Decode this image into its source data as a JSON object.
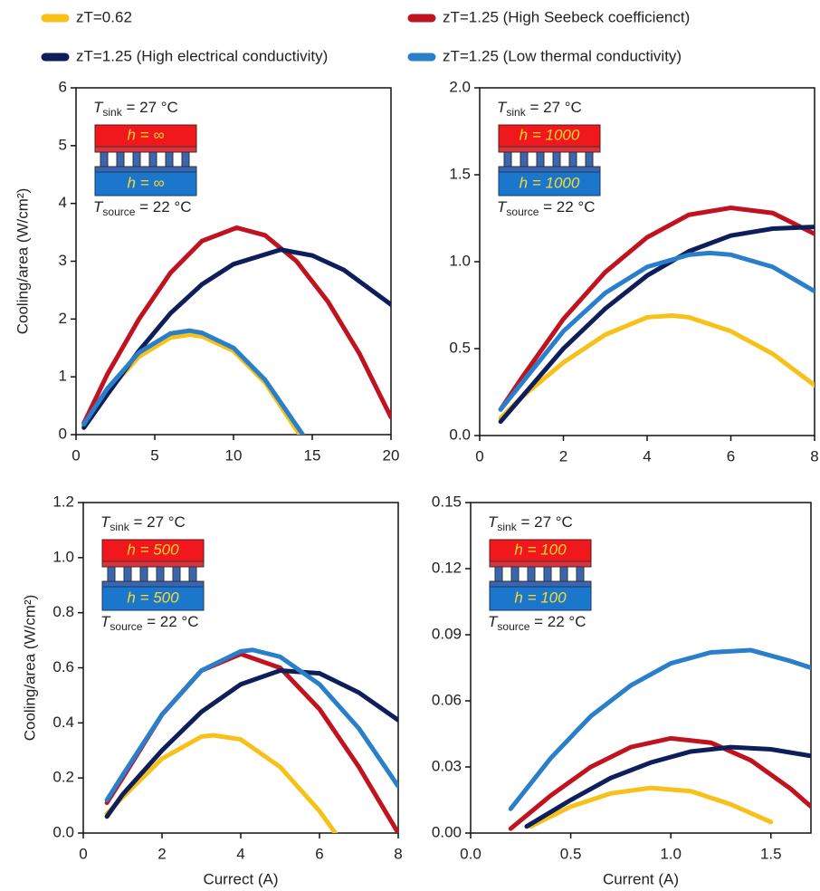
{
  "chart_data": [
    {
      "type": "line",
      "xlim": [
        0,
        20
      ],
      "ylim": [
        0,
        6
      ],
      "xticks": [
        0,
        5,
        10,
        15,
        20
      ],
      "yticks": [
        0,
        1,
        2,
        3,
        4,
        5,
        6
      ],
      "ylabel": "Cooling/area (W/cm²)",
      "inset": {
        "t": "T",
        "sink": "sink",
        "sink_text": " = 27 °C",
        "h": "h = ∞",
        "source": "source",
        "source_text": " = 22 °C"
      },
      "series": [
        {
          "name": "zT=0.62",
          "color": "#f7c11a",
          "x": [
            0.5,
            2,
            4,
            6,
            7.2,
            8,
            10,
            12,
            14.2
          ],
          "values": [
            0.15,
            0.75,
            1.35,
            1.68,
            1.73,
            1.7,
            1.45,
            0.9,
            0
          ]
        },
        {
          "name": "zT=1.25 (High Seebeck coefficienct)",
          "color": "#c1121f",
          "x": [
            0.5,
            2,
            4,
            6,
            8,
            10.2,
            12,
            14,
            16,
            18,
            20
          ],
          "values": [
            0.2,
            1.05,
            2.0,
            2.8,
            3.35,
            3.58,
            3.45,
            3.0,
            2.3,
            1.4,
            0.3
          ]
        },
        {
          "name": "zT=1.25 (High electrical conductivity)",
          "color": "#0d1e5a",
          "x": [
            0.5,
            2,
            4,
            6,
            8,
            10,
            13,
            15,
            17,
            20
          ],
          "values": [
            0.12,
            0.7,
            1.45,
            2.1,
            2.6,
            2.95,
            3.2,
            3.1,
            2.85,
            2.25
          ]
        },
        {
          "name": "zT=1.25 (Low thermal conductivity)",
          "color": "#2a7fcb",
          "x": [
            0.5,
            2,
            4,
            6,
            7.2,
            8,
            10,
            12,
            14.4
          ],
          "values": [
            0.18,
            0.8,
            1.42,
            1.75,
            1.8,
            1.76,
            1.5,
            0.95,
            0
          ]
        }
      ]
    },
    {
      "type": "line",
      "xlim": [
        0,
        8
      ],
      "ylim": [
        0,
        2
      ],
      "xticks": [
        0,
        2,
        4,
        6,
        8
      ],
      "yticks": [
        {
          "value": 0,
          "label": "0.0"
        },
        0.5,
        {
          "value": 1,
          "label": "1.0"
        },
        1.5,
        {
          "value": 2,
          "label": "2.0"
        }
      ],
      "inset": {
        "t": "T",
        "sink": "sink",
        "sink_text": " = 27 °C",
        "h": "h = 1000",
        "source": "source",
        "source_text": " = 22 °C"
      },
      "series": [
        {
          "color": "#f7c11a",
          "x": [
            0.5,
            1,
            2,
            3,
            4,
            4.6,
            5,
            6,
            7,
            8
          ],
          "values": [
            0.1,
            0.22,
            0.42,
            0.58,
            0.68,
            0.69,
            0.68,
            0.6,
            0.47,
            0.29
          ]
        },
        {
          "color": "#c1121f",
          "x": [
            0.5,
            1,
            2,
            3,
            4,
            5,
            6,
            7,
            8
          ],
          "values": [
            0.15,
            0.33,
            0.67,
            0.94,
            1.14,
            1.27,
            1.31,
            1.28,
            1.16
          ]
        },
        {
          "color": "#0d1e5a",
          "x": [
            0.5,
            1,
            2,
            3,
            4,
            5,
            6,
            7,
            8
          ],
          "values": [
            0.08,
            0.22,
            0.5,
            0.73,
            0.92,
            1.06,
            1.15,
            1.19,
            1.2
          ]
        },
        {
          "color": "#2a7fcb",
          "x": [
            0.5,
            1,
            2,
            3,
            4,
            5,
            5.5,
            6,
            7,
            8
          ],
          "values": [
            0.15,
            0.3,
            0.6,
            0.82,
            0.97,
            1.04,
            1.05,
            1.04,
            0.97,
            0.83
          ]
        }
      ]
    },
    {
      "type": "line",
      "xlim": [
        0,
        8
      ],
      "ylim": [
        0,
        1.2
      ],
      "xticks": [
        0,
        2,
        4,
        6,
        8
      ],
      "yticks": [
        {
          "value": 0,
          "label": "0.0"
        },
        0.2,
        0.4,
        0.6,
        0.8,
        {
          "value": 1,
          "label": "1.0"
        },
        1.2
      ],
      "ylabel": "Cooling/area (W/cm²)",
      "xlabel": "Currect (A)",
      "inset": {
        "t": "T",
        "sink": "sink",
        "sink_text": " = 27 °C",
        "h": "h = 500",
        "source": "source",
        "source_text": " = 22 °C"
      },
      "series": [
        {
          "color": "#f7c11a",
          "x": [
            0.6,
            1,
            2,
            3,
            3.3,
            4,
            5,
            6,
            6.4
          ],
          "values": [
            0.07,
            0.13,
            0.27,
            0.35,
            0.355,
            0.34,
            0.24,
            0.08,
            0
          ]
        },
        {
          "color": "#c1121f",
          "x": [
            0.6,
            1,
            2,
            3,
            4,
            5,
            6,
            7,
            8
          ],
          "values": [
            0.11,
            0.2,
            0.43,
            0.59,
            0.65,
            0.6,
            0.45,
            0.24,
            0
          ]
        },
        {
          "color": "#0d1e5a",
          "x": [
            0.6,
            1,
            2,
            3,
            4,
            5,
            6,
            7,
            8
          ],
          "values": [
            0.06,
            0.14,
            0.3,
            0.44,
            0.54,
            0.59,
            0.58,
            0.51,
            0.41
          ]
        },
        {
          "color": "#2a7fcb",
          "x": [
            0.6,
            1,
            2,
            3,
            4,
            4.3,
            5,
            6,
            7,
            8
          ],
          "values": [
            0.12,
            0.21,
            0.43,
            0.59,
            0.66,
            0.665,
            0.64,
            0.54,
            0.38,
            0.17
          ]
        }
      ]
    },
    {
      "type": "line",
      "xlim": [
        0,
        1.7
      ],
      "ylim": [
        0,
        0.15
      ],
      "xticks": [
        {
          "value": 0,
          "label": "0.0"
        },
        0.5,
        {
          "value": 1,
          "label": "1.0"
        },
        1.5
      ],
      "yticks": [
        {
          "value": 0,
          "label": "0.00"
        },
        0.03,
        0.06,
        0.09,
        {
          "value": 0.12,
          "label": "0.12"
        },
        0.15
      ],
      "xlabel": "Current (A)",
      "inset": {
        "t": "T",
        "sink": "sink",
        "sink_text": " = 27 °C",
        "h": "h = 100",
        "source": "source",
        "source_text": " = 22 °C"
      },
      "series": [
        {
          "color": "#f7c11a",
          "x": [
            0.3,
            0.5,
            0.7,
            0.9,
            1.1,
            1.3,
            1.5
          ],
          "values": [
            0.003,
            0.012,
            0.018,
            0.0205,
            0.019,
            0.013,
            0.005
          ]
        },
        {
          "color": "#c1121f",
          "x": [
            0.2,
            0.4,
            0.6,
            0.8,
            1.0,
            1.2,
            1.4,
            1.6,
            1.7
          ],
          "values": [
            0.002,
            0.017,
            0.03,
            0.039,
            0.043,
            0.041,
            0.033,
            0.02,
            0.012
          ]
        },
        {
          "color": "#0d1e5a",
          "x": [
            0.28,
            0.5,
            0.7,
            0.9,
            1.1,
            1.3,
            1.5,
            1.7
          ],
          "values": [
            0.003,
            0.015,
            0.025,
            0.032,
            0.037,
            0.039,
            0.038,
            0.035
          ]
        },
        {
          "color": "#2a7fcb",
          "x": [
            0.2,
            0.4,
            0.6,
            0.8,
            1.0,
            1.2,
            1.4,
            1.6,
            1.7
          ],
          "values": [
            0.011,
            0.034,
            0.053,
            0.067,
            0.077,
            0.082,
            0.083,
            0.078,
            0.075
          ]
        }
      ]
    }
  ]
}
